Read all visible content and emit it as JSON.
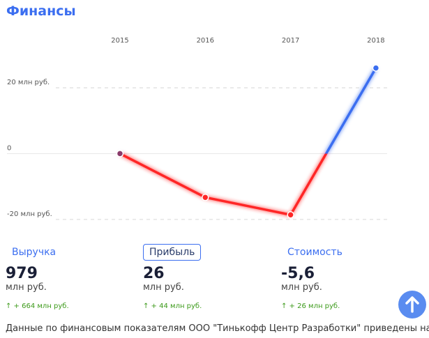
{
  "header": {
    "title": "Финансы"
  },
  "chart_data": {
    "type": "line",
    "categories": [
      "2015",
      "2016",
      "2017",
      "2018"
    ],
    "series": [
      {
        "name": "Прибыль",
        "color": "#ff2626",
        "positive_color": "#3b6ef0",
        "zero_color": "#8a3a6a",
        "values": [
          0,
          -13.3,
          -18.6,
          26
        ]
      }
    ],
    "ylim": [
      -23,
      38
    ],
    "yticks": [
      {
        "value": -20,
        "label": "-20 млн руб."
      },
      0,
      {
        "value": 20,
        "label": "20 млн руб."
      }
    ],
    "grid": true
  },
  "metrics": [
    {
      "label": "Выручка",
      "value": "979",
      "unit": "млн руб.",
      "change": "↑ + 664 млн руб."
    },
    {
      "label": "Прибыль",
      "value": "26",
      "unit": "млн руб.",
      "change": "↑ + 44 млн руб."
    },
    {
      "label": "Стоимость",
      "value": "-5,6",
      "unit": "млн руб.",
      "change": "↑ + 26 млн руб."
    }
  ],
  "footer": {
    "text": "Данные по финансовым показателям ООО \"Тинькофф Центр Разработки\" приведены на"
  }
}
